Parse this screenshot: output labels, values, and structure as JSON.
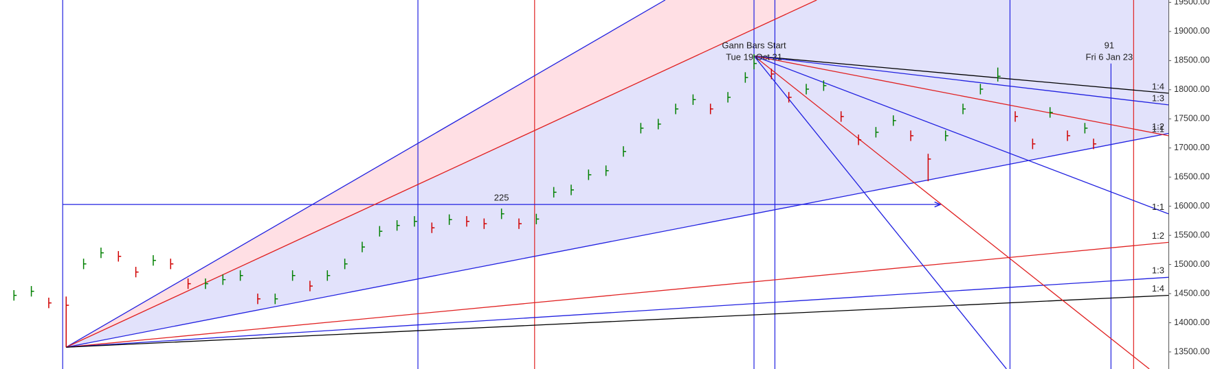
{
  "chart_data": {
    "type": "ohlc",
    "xlim": [
      -38,
      633
    ],
    "ylim": [
      13206,
      19540
    ],
    "yticks": [
      {
        "value": 13500,
        "label": "13500.00"
      },
      {
        "value": 14000,
        "label": "14000.00"
      },
      {
        "value": 14500,
        "label": "14500.00"
      },
      {
        "value": 15000,
        "label": "15000.00"
      },
      {
        "value": 15500,
        "label": "15500.00"
      },
      {
        "value": 16000,
        "label": "16000.00"
      },
      {
        "value": 16500,
        "label": "16500.00"
      },
      {
        "value": 17000,
        "label": "17000.00"
      },
      {
        "value": 17500,
        "label": "17500.00"
      },
      {
        "value": 18000,
        "label": "18000.00"
      },
      {
        "value": 18500,
        "label": "18500.00"
      },
      {
        "value": 19000,
        "label": "19000.00"
      },
      {
        "value": 19500,
        "label": "19500.00"
      }
    ],
    "up_color": "#008000",
    "down_color": "#d00000",
    "bars": {
      "x": [
        -30,
        -20,
        -10,
        0,
        10,
        20,
        30,
        40,
        50,
        60,
        70,
        80,
        90,
        100,
        110,
        120,
        130,
        140,
        150,
        160,
        170,
        180,
        190,
        200,
        210,
        220,
        230,
        240,
        250,
        260,
        270,
        280,
        290,
        300,
        310,
        320,
        330,
        340,
        350,
        360,
        370,
        380,
        390,
        395,
        405,
        415,
        425,
        435,
        445,
        455,
        465,
        475,
        485,
        495,
        505,
        515,
        525,
        535,
        545,
        555,
        565,
        575,
        585,
        590
      ],
      "high": [
        14560,
        14630,
        14430,
        14450,
        15100,
        15290,
        15230,
        14960,
        15160,
        15100,
        14760,
        14760,
        14830,
        14900,
        14500,
        14500,
        14900,
        14720,
        14900,
        15100,
        15390,
        15660,
        15760,
        15830,
        15720,
        15860,
        15830,
        15790,
        15960,
        15790,
        15870,
        16330,
        16370,
        16630,
        16700,
        17030,
        17430,
        17500,
        17760,
        17920,
        17760,
        17960,
        18300,
        18610,
        18360,
        17960,
        18100,
        18160,
        17630,
        17230,
        17360,
        17560,
        17300,
        16900,
        17300,
        17760,
        18100,
        18380,
        17630,
        17160,
        17700,
        17300,
        17430,
        17160
      ],
      "low": [
        14380,
        14450,
        14250,
        13580,
        14920,
        15110,
        15050,
        14780,
        14980,
        14920,
        14580,
        14580,
        14650,
        14720,
        14320,
        14320,
        14720,
        14540,
        14720,
        14920,
        15210,
        15480,
        15580,
        15650,
        15540,
        15680,
        15650,
        15610,
        15780,
        15610,
        15690,
        16150,
        16190,
        16450,
        16520,
        16850,
        17250,
        17320,
        17580,
        17740,
        17580,
        17780,
        18120,
        18350,
        18180,
        17780,
        17920,
        17980,
        17450,
        17050,
        17180,
        17380,
        17120,
        16430,
        17120,
        17580,
        17920,
        18140,
        17450,
        16980,
        17520,
        17120,
        17250,
        16980
      ],
      "close": [
        14470,
        14540,
        14340,
        14300,
        15010,
        15200,
        15140,
        14870,
        15070,
        15010,
        14670,
        14670,
        14740,
        14810,
        14410,
        14410,
        14810,
        14630,
        14810,
        15010,
        15300,
        15570,
        15670,
        15740,
        15630,
        15770,
        15740,
        15700,
        15870,
        15700,
        15780,
        16240,
        16280,
        16540,
        16610,
        16940,
        17340,
        17410,
        17670,
        17830,
        17670,
        17870,
        18210,
        18450,
        18270,
        17870,
        18010,
        18070,
        17540,
        17140,
        17270,
        17470,
        17210,
        16810,
        17210,
        17670,
        18010,
        18230,
        17540,
        17070,
        17610,
        17210,
        17340,
        17070
      ]
    },
    "fan_lines": [
      {
        "from": [
          0,
          13580
        ],
        "to": [
          344,
          19540
        ],
        "color": "#2020e0"
      },
      {
        "from": [
          0,
          13580
        ],
        "to": [
          431,
          19540
        ],
        "color": "#e02020"
      },
      {
        "from": [
          0,
          13580
        ],
        "to": [
          633,
          17250
        ],
        "color": "#2020e0",
        "label": "1:2"
      },
      {
        "from": [
          0,
          13580
        ],
        "to": [
          633,
          15380
        ],
        "color": "#e02020",
        "label": "1:2"
      },
      {
        "from": [
          0,
          13580
        ],
        "to": [
          633,
          14780
        ],
        "color": "#2020e0",
        "label": "1:3"
      },
      {
        "from": [
          0,
          13580
        ],
        "to": [
          633,
          14470
        ],
        "color": "#000000",
        "label": "1:4"
      },
      {
        "from": [
          395,
          18580
        ],
        "to": [
          633,
          17940
        ],
        "color": "#000000",
        "label": "1:4"
      },
      {
        "from": [
          395,
          18580
        ],
        "to": [
          633,
          17740
        ],
        "color": "#2020e0",
        "label": "1:3"
      },
      {
        "from": [
          395,
          18580
        ],
        "to": [
          633,
          17210
        ],
        "color": "#e02020",
        "label": "1:1"
      },
      {
        "from": [
          395,
          18580
        ],
        "to": [
          633,
          15870
        ],
        "color": "#2020e0",
        "label": "1:1"
      },
      {
        "from": [
          395,
          18580
        ],
        "to": [
          622,
          13207
        ],
        "color": "#e02020"
      },
      {
        "from": [
          395,
          18580
        ],
        "to": [
          540,
          13207
        ],
        "color": "#2020e0"
      }
    ],
    "fills": [
      {
        "lines": [
          0,
          1
        ],
        "color": "#ffdfe4"
      },
      {
        "lines": [
          1,
          2
        ],
        "color": "#e2e2fb"
      }
    ],
    "vlines": [
      {
        "x": -2,
        "color": "#2020e0"
      },
      {
        "x": 202,
        "color": "#2020e0"
      },
      {
        "x": 269,
        "color": "#e02020"
      },
      {
        "x": 395,
        "color": "#2020e0"
      },
      {
        "x": 407,
        "color": "#2020e0"
      },
      {
        "x": 542,
        "color": "#2020e0"
      },
      {
        "x": 600,
        "top": 18450,
        "color": "#2020e0"
      },
      {
        "x": 613,
        "color": "#e02020"
      }
    ],
    "hlines": [
      {
        "x": [
          -2,
          502
        ],
        "y": 16030,
        "color": "#2020e0",
        "label": "225"
      }
    ],
    "annotations": [
      {
        "x": 395,
        "y": 18750,
        "text": [
          "Gann Bars Start",
          "Tue 19 Oct 21"
        ]
      },
      {
        "x": 599,
        "y": 18750,
        "text": [
          "91",
          "Fri 6 Jan 23"
        ]
      }
    ]
  }
}
